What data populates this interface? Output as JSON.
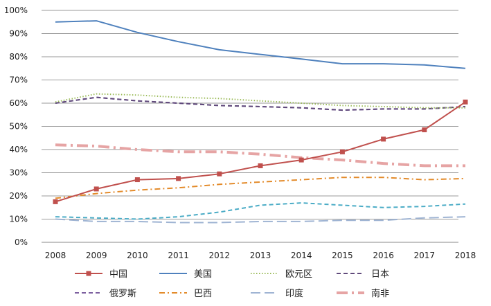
{
  "chart_data": {
    "type": "line",
    "x": [
      "2008",
      "2009",
      "2010",
      "2011",
      "2012",
      "2013",
      "2014",
      "2015",
      "2016",
      "2017",
      "2018"
    ],
    "ylim": [
      0,
      100
    ],
    "y_ticks": [
      "0%",
      "10%",
      "20%",
      "30%",
      "40%",
      "50%",
      "60%",
      "70%",
      "80%",
      "90%",
      "100%"
    ],
    "grid": true,
    "legend_position": "bottom",
    "series": [
      {
        "name": "中国",
        "color": "#c0504d",
        "dash": "solid",
        "marker": "square",
        "values": [
          17.5,
          23,
          27,
          27.5,
          29.5,
          33,
          35.5,
          39,
          44.5,
          48.5,
          60.5
        ]
      },
      {
        "name": "美国",
        "color": "#4f81bd",
        "dash": "solid",
        "marker": "none",
        "values": [
          95,
          95.5,
          90.5,
          86.5,
          83,
          81,
          79,
          77,
          77,
          76.5,
          75
        ]
      },
      {
        "name": "欧元区",
        "color": "#9bbb59",
        "dash": "dot",
        "marker": "none",
        "values": [
          60.5,
          64,
          63.5,
          62.5,
          62,
          61,
          60,
          59,
          58.5,
          58,
          58
        ]
      },
      {
        "name": "日本",
        "color": "#604a7b",
        "dash": "dash",
        "marker": "none",
        "values": [
          60,
          62.5,
          61,
          60,
          59,
          58.5,
          58,
          57,
          57.5,
          57.5,
          58.5
        ]
      },
      {
        "name": "俄罗斯",
        "color": "#7d60a0",
        "dash": "dash",
        "marker": "none",
        "values": [
          60,
          62.5,
          61,
          60,
          59,
          58.5,
          58,
          57,
          57.5,
          57.5,
          58.5
        ]
      },
      {
        "name": "巴西",
        "color": "#e38b2b",
        "dash": "dashdot",
        "marker": "none",
        "values": [
          19,
          21,
          22.5,
          23.5,
          25,
          26,
          27,
          28,
          28,
          27,
          27.5
        ]
      },
      {
        "name": "印度",
        "color": "#9fb4d3",
        "dash": "longdash",
        "marker": "none",
        "values": [
          10,
          9,
          9,
          8.5,
          8.5,
          9,
          9,
          9.5,
          9.5,
          10.5,
          11
        ]
      },
      {
        "name": "南非",
        "color": "#e6a4a4",
        "dash": "longdashdot",
        "marker": "none",
        "values": [
          42,
          41.5,
          40,
          39,
          39,
          38,
          36.5,
          35.5,
          34,
          33,
          33
        ]
      },
      {
        "name": "",
        "color": "#4bacc6",
        "dash": "dash",
        "marker": "none",
        "in_legend": false,
        "values": [
          11,
          10.5,
          10,
          11,
          13,
          16,
          17,
          16,
          15,
          15.5,
          16.5
        ]
      }
    ]
  }
}
